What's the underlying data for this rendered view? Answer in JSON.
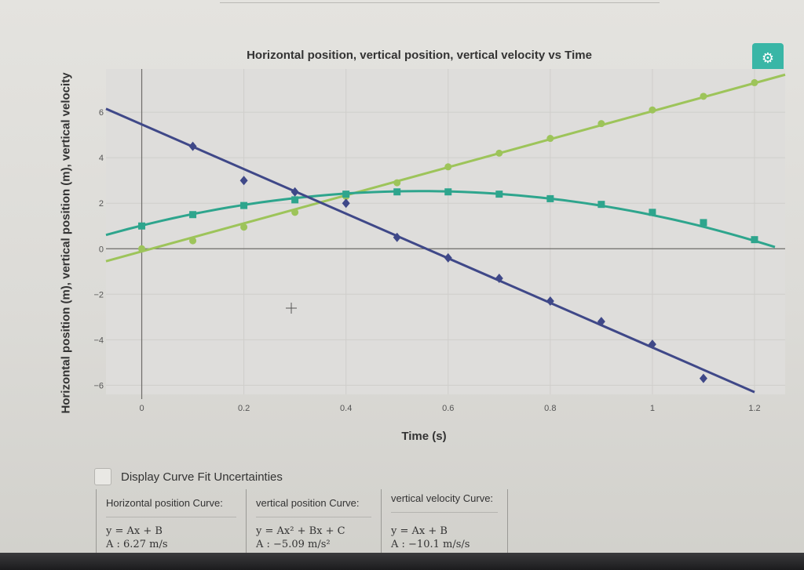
{
  "chart": {
    "title": "Horizontal position, vertical position, vertical velocity vs Time",
    "xlabel": "Time (s)",
    "ylabel": "Horizontal position (m), vertical position (m), vertical velocity"
  },
  "toolbar": {
    "settings_icon": "gear-icon",
    "settings_glyph": "⚙"
  },
  "uncertainties": {
    "label": "Display Curve Fit Uncertainties",
    "checked": false
  },
  "fits": [
    {
      "name": "Horizontal position Curve:",
      "equation": "y = Ax + B",
      "coef": "A : 6.27 m/s"
    },
    {
      "name": "vertical position Curve:",
      "equation": "y = Ax² + Bx + C",
      "coef": "A : −5.09 m/s²"
    },
    {
      "name": "vertical velocity Curve:",
      "equation": "y = Ax + B",
      "coef": "A : −10.1 m/s/s"
    }
  ],
  "chart_data": {
    "type": "scatter",
    "title": "Horizontal position, vertical position, vertical velocity vs Time",
    "xlabel": "Time (s)",
    "ylabel": "Horizontal position (m), vertical position (m), vertical velocity",
    "xlim": [
      -0.07,
      1.26
    ],
    "ylim": [
      -6.4,
      7.9
    ],
    "xticks": [
      0,
      0.2,
      0.4,
      0.6,
      0.8,
      1,
      1.2
    ],
    "yticks": [
      -6,
      -4,
      -2,
      0,
      2,
      4,
      6
    ],
    "grid": true,
    "colors": {
      "horizontal": "#9dc45a",
      "vertical": "#2ea58d",
      "velocity": "#3f4888",
      "background": "#dedddb"
    },
    "series": [
      {
        "key": "horizontal",
        "marker": "circle",
        "x": [
          0,
          0.1,
          0.2,
          0.3,
          0.4,
          0.5,
          0.6,
          0.7,
          0.8,
          0.9,
          1.0,
          1.1,
          1.2
        ],
        "y": [
          0.0,
          0.35,
          0.95,
          1.6,
          2.3,
          2.9,
          3.6,
          4.2,
          4.85,
          5.5,
          6.1,
          6.7,
          7.3
        ],
        "fit": {
          "kind": "linear",
          "x0": -0.07,
          "y0": -0.55,
          "x1": 1.26,
          "y1": 7.65
        }
      },
      {
        "key": "vertical",
        "marker": "square",
        "x": [
          0,
          0.1,
          0.2,
          0.3,
          0.4,
          0.5,
          0.6,
          0.7,
          0.8,
          0.9,
          1.0,
          1.1,
          1.2
        ],
        "y": [
          1.0,
          1.5,
          1.9,
          2.15,
          2.4,
          2.5,
          2.5,
          2.4,
          2.2,
          1.95,
          1.6,
          1.15,
          0.4
        ],
        "fit": {
          "kind": "quadratic",
          "a": -5.09,
          "b": 5.55,
          "c": 1.02,
          "xmin": -0.07,
          "xmax": 1.24
        }
      },
      {
        "key": "velocity",
        "marker": "diamond",
        "x": [
          0.1,
          0.2,
          0.3,
          0.4,
          0.5,
          0.6,
          0.7,
          0.8,
          0.9,
          1.0,
          1.1
        ],
        "y": [
          4.5,
          3.0,
          2.5,
          2.0,
          0.5,
          -0.4,
          -1.3,
          -2.3,
          -3.2,
          -4.2,
          -5.7
        ],
        "fit": {
          "kind": "linear",
          "x0": -0.07,
          "y0": 6.15,
          "x1": 1.2,
          "y1": -6.3
        }
      }
    ]
  }
}
